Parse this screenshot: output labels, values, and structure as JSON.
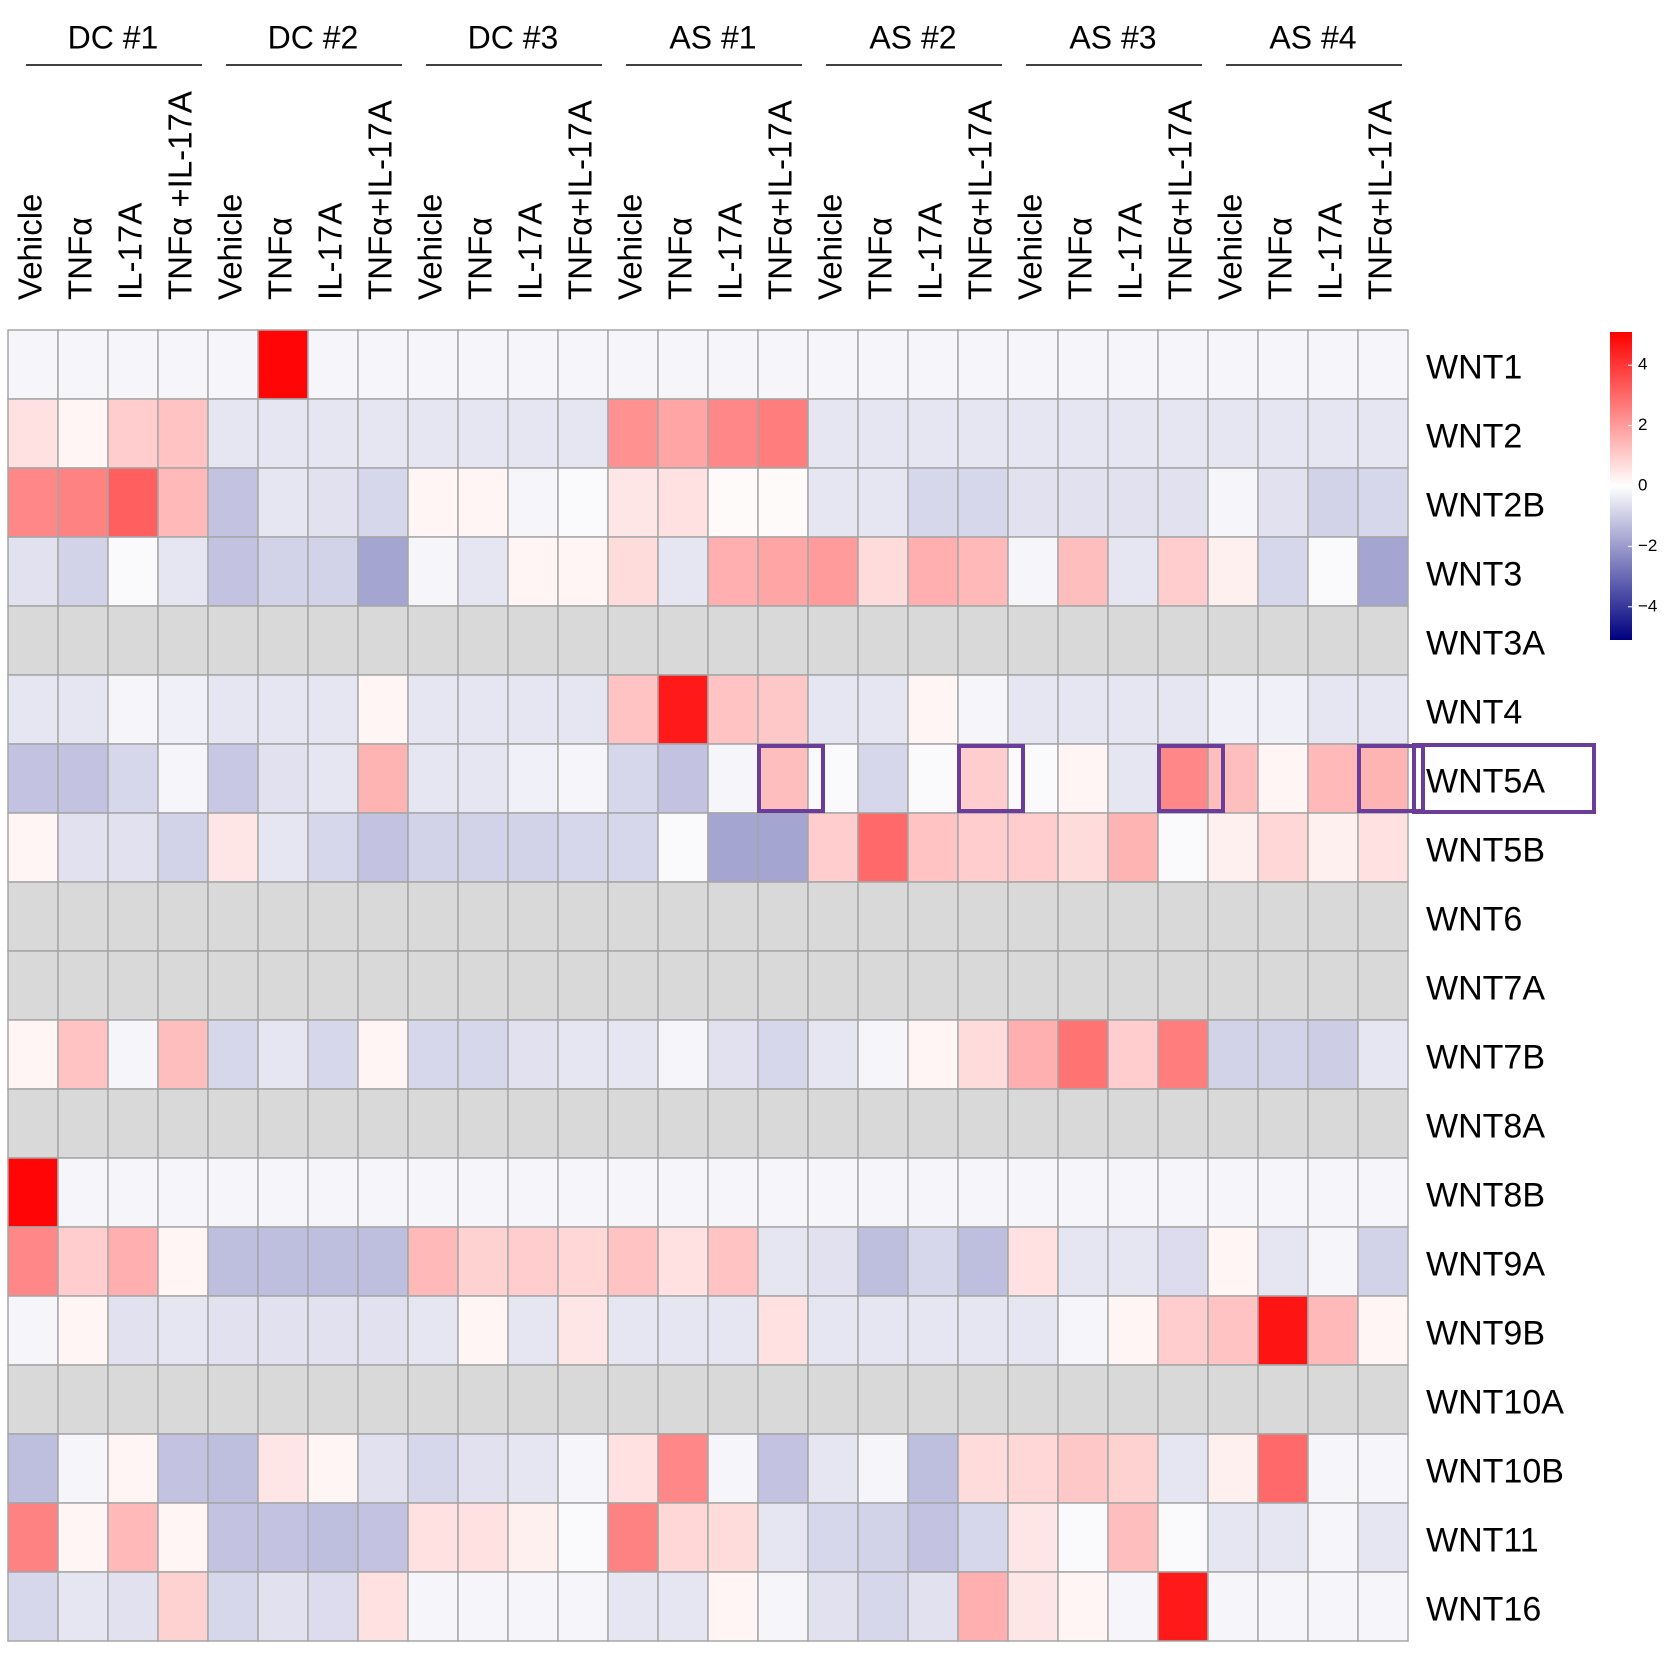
{
  "chart_data": {
    "type": "heatmap",
    "groups": [
      {
        "name": "DC #1",
        "columns": [
          "Vehicle",
          "TNFα",
          "IL-17A",
          "TNFα +IL-17A"
        ]
      },
      {
        "name": "DC #2",
        "columns": [
          "Vehicle",
          "TNFα",
          "IL-17A",
          "TNFα+IL-17A"
        ]
      },
      {
        "name": "DC #3",
        "columns": [
          "Vehicle",
          "TNFα",
          "IL-17A",
          "TNFα+IL-17A"
        ]
      },
      {
        "name": "AS #1",
        "columns": [
          "Vehicle",
          "TNFα",
          "IL-17A",
          "TNFα+IL-17A"
        ]
      },
      {
        "name": "AS #2",
        "columns": [
          "Vehicle",
          "TNFα",
          "IL-17A",
          "TNFα+IL-17A"
        ]
      },
      {
        "name": "AS #3",
        "columns": [
          "Vehicle",
          "TNFα",
          "IL-17A",
          "TNFα+IL-17A"
        ]
      },
      {
        "name": "AS #4",
        "columns": [
          "Vehicle",
          "TNFα",
          "IL-17A",
          "TNFα+IL-17A"
        ]
      }
    ],
    "rows": [
      "WNT1",
      "WNT2",
      "WNT2B",
      "WNT3",
      "WNT3A",
      "WNT4",
      "WNT5A",
      "WNT5B",
      "WNT6",
      "WNT7A",
      "WNT7B",
      "WNT8A",
      "WNT8B",
      "WNT9A",
      "WNT9B",
      "WNT10A",
      "WNT10B",
      "WNT11",
      "WNT16"
    ],
    "values": [
      [
        -0.2,
        -0.2,
        -0.2,
        -0.2,
        -0.2,
        5,
        -0.2,
        -0.2,
        -0.2,
        -0.2,
        -0.2,
        -0.2,
        -0.2,
        -0.2,
        -0.2,
        -0.2,
        -0.2,
        -0.2,
        -0.2,
        -0.2,
        -0.2,
        -0.2,
        -0.2,
        -0.2,
        -0.2,
        -0.2,
        -0.2,
        -0.2
      ],
      [
        0.6,
        0.2,
        1.0,
        1.2,
        -0.5,
        -0.5,
        -0.5,
        -0.5,
        -0.5,
        -0.5,
        -0.5,
        -0.5,
        2.2,
        1.8,
        2.4,
        2.6,
        -0.5,
        -0.5,
        -0.5,
        -0.5,
        -0.5,
        -0.5,
        -0.5,
        -0.5,
        -0.5,
        -0.5,
        -0.5,
        -0.5
      ],
      [
        2.4,
        2.5,
        3.2,
        1.4,
        -1.2,
        -0.5,
        -0.6,
        -0.8,
        0.2,
        0.2,
        -0.2,
        -0.1,
        0.5,
        0.6,
        0.1,
        0.1,
        -0.5,
        -0.5,
        -0.8,
        -0.8,
        -0.6,
        -0.6,
        -0.6,
        -0.6,
        -0.2,
        -0.6,
        -0.9,
        -0.8
      ],
      [
        -0.6,
        -0.9,
        -0.1,
        -0.5,
        -1.2,
        -0.9,
        -0.9,
        -1.8,
        -0.2,
        -0.5,
        0.2,
        0.2,
        0.7,
        -0.5,
        1.6,
        1.8,
        2.0,
        0.7,
        1.6,
        1.4,
        -0.2,
        1.3,
        -0.5,
        1.0,
        0.3,
        -0.8,
        -0.1,
        -1.8
      ],
      [
        null,
        null,
        null,
        null,
        null,
        null,
        null,
        null,
        null,
        null,
        null,
        null,
        null,
        null,
        null,
        null,
        null,
        null,
        null,
        null,
        null,
        null,
        null,
        null,
        null,
        null,
        null,
        null
      ],
      [
        -0.5,
        -0.5,
        -0.2,
        -0.3,
        -0.5,
        -0.5,
        -0.5,
        0.2,
        -0.5,
        -0.5,
        -0.5,
        -0.5,
        1.2,
        4.6,
        1.2,
        1.1,
        -0.5,
        -0.5,
        0.2,
        -0.2,
        -0.5,
        -0.5,
        -0.5,
        -0.5,
        -0.3,
        -0.3,
        -0.5,
        -0.5
      ],
      [
        -1.2,
        -1.2,
        -0.8,
        -0.2,
        -1.1,
        -0.6,
        -0.5,
        1.5,
        -0.5,
        -0.5,
        -0.3,
        -0.2,
        -0.8,
        -1.2,
        -0.2,
        1.3,
        -0.1,
        -0.8,
        -0.1,
        1.0,
        -0.1,
        0.2,
        -0.5,
        2.4,
        1.3,
        0.2,
        1.4,
        1.5
      ],
      [
        0.2,
        -0.6,
        -0.6,
        -0.9,
        0.5,
        -0.5,
        -0.8,
        -1.2,
        -0.9,
        -0.9,
        -0.9,
        -0.8,
        -0.8,
        -0.1,
        -1.8,
        -1.8,
        1.0,
        3.0,
        1.2,
        1.0,
        1.0,
        0.7,
        1.5,
        -0.1,
        0.3,
        0.8,
        0.3,
        0.6
      ],
      [
        null,
        null,
        null,
        null,
        null,
        null,
        null,
        null,
        null,
        null,
        null,
        null,
        null,
        null,
        null,
        null,
        null,
        null,
        null,
        null,
        null,
        null,
        null,
        null,
        null,
        null,
        null,
        null
      ],
      [
        null,
        null,
        null,
        null,
        null,
        null,
        null,
        null,
        null,
        null,
        null,
        null,
        null,
        null,
        null,
        null,
        null,
        null,
        null,
        null,
        null,
        null,
        null,
        null,
        null,
        null,
        null,
        null
      ],
      [
        0.2,
        1.2,
        -0.2,
        1.3,
        -0.8,
        -0.5,
        -0.8,
        0.2,
        -0.8,
        -0.8,
        -0.6,
        -0.5,
        -0.5,
        -0.2,
        -0.6,
        -0.8,
        -0.5,
        -0.2,
        0.2,
        0.7,
        1.6,
        2.8,
        1.0,
        2.6,
        -0.9,
        -0.9,
        -1.0,
        -0.5
      ],
      [
        null,
        null,
        null,
        null,
        null,
        null,
        null,
        null,
        null,
        null,
        null,
        null,
        null,
        null,
        null,
        null,
        null,
        null,
        null,
        null,
        null,
        null,
        null,
        null,
        null,
        null,
        null,
        null
      ],
      [
        5,
        -0.2,
        -0.2,
        -0.2,
        -0.2,
        -0.2,
        -0.2,
        -0.2,
        -0.2,
        -0.2,
        -0.2,
        -0.2,
        -0.2,
        -0.2,
        -0.2,
        -0.2,
        -0.2,
        -0.2,
        -0.2,
        -0.2,
        -0.2,
        -0.2,
        -0.2,
        -0.2,
        -0.2,
        -0.2,
        -0.2,
        -0.2
      ],
      [
        2.4,
        1.0,
        1.6,
        0.2,
        -1.3,
        -1.3,
        -1.3,
        -1.3,
        1.4,
        0.9,
        1.0,
        0.8,
        1.2,
        0.6,
        1.2,
        -0.5,
        -0.6,
        -1.3,
        -0.8,
        -1.3,
        0.6,
        -0.5,
        -0.5,
        -0.7,
        0.2,
        -0.5,
        -0.2,
        -0.9
      ],
      [
        -0.2,
        0.2,
        -0.6,
        -0.5,
        -0.6,
        -0.6,
        -0.6,
        -0.6,
        -0.5,
        0.2,
        -0.5,
        0.5,
        -0.5,
        -0.5,
        -0.5,
        0.6,
        -0.5,
        -0.5,
        -0.5,
        -0.5,
        -0.5,
        -0.2,
        0.2,
        1.0,
        1.2,
        4.7,
        1.4,
        0.2
      ],
      [
        null,
        null,
        null,
        null,
        null,
        null,
        null,
        null,
        null,
        null,
        null,
        null,
        null,
        null,
        null,
        null,
        null,
        null,
        null,
        null,
        null,
        null,
        null,
        null,
        null,
        null,
        null,
        null
      ],
      [
        -1.3,
        -0.2,
        0.2,
        -1.2,
        -1.3,
        0.5,
        0.2,
        -0.6,
        -0.8,
        -0.6,
        -0.5,
        -0.2,
        0.6,
        2.4,
        -0.2,
        -1.2,
        -0.5,
        -0.2,
        -1.3,
        0.7,
        0.8,
        1.1,
        0.9,
        -0.5,
        0.3,
        3.0,
        -0.2,
        -0.2
      ],
      [
        2.5,
        0.2,
        1.4,
        0.2,
        -1.2,
        -1.2,
        -1.3,
        -1.2,
        0.6,
        0.6,
        0.3,
        -0.1,
        2.5,
        0.8,
        0.7,
        -0.5,
        -0.8,
        -0.9,
        -1.2,
        -0.8,
        0.5,
        -0.1,
        1.3,
        -0.1,
        -0.5,
        -0.5,
        -0.2,
        -0.5
      ],
      [
        -0.8,
        -0.5,
        -0.6,
        0.9,
        -0.8,
        -0.6,
        -0.7,
        0.6,
        -0.2,
        -0.2,
        -0.2,
        -0.2,
        -0.5,
        -0.5,
        0.2,
        -0.2,
        -0.6,
        -0.8,
        -0.6,
        1.6,
        0.5,
        0.2,
        -0.2,
        4.6,
        -0.2,
        -0.2,
        -0.2,
        -0.2
      ]
    ],
    "colors": [
      "#000080",
      "#ffffff",
      "#ff0000"
    ],
    "na_color": "#d9d9d9",
    "clim": [
      -5.1,
      5.1
    ],
    "cticks": [
      4,
      2,
      0,
      {
        "value": -2,
        "label": "−2"
      },
      {
        "value": -4,
        "label": "−4"
      }
    ]
  }
}
